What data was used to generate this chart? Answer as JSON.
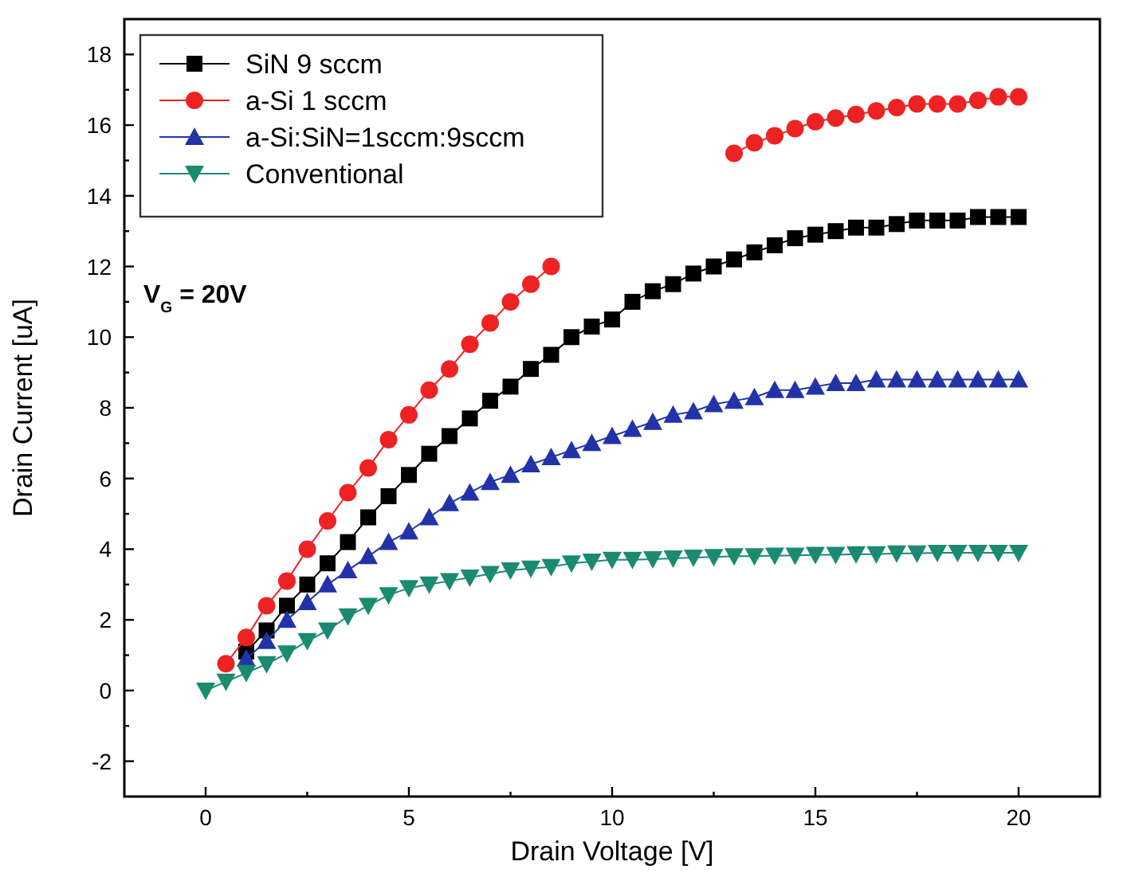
{
  "chart_data": {
    "type": "line",
    "xlabel": "Drain Voltage [V]",
    "ylabel": "Drain Current [uA]",
    "annotations": [
      "V$_{G}$ = 20V"
    ],
    "x": [
      0,
      0.5,
      1,
      1.5,
      2,
      2.5,
      3,
      3.5,
      4,
      4.5,
      5,
      5.5,
      6,
      6.5,
      7,
      7.5,
      8,
      8.5,
      9,
      9.5,
      10,
      10.5,
      11,
      11.5,
      12,
      12.5,
      13,
      13.5,
      14,
      14.5,
      15,
      15.5,
      16,
      16.5,
      17,
      17.5,
      18,
      18.5,
      19,
      19.5,
      20
    ],
    "xlim": [
      -2,
      22
    ],
    "ylim": [
      -3,
      19
    ],
    "xticks": [
      0,
      {
        "value": 2.5,
        "label": null
      },
      5,
      {
        "value": 7.5,
        "label": null
      },
      10,
      {
        "value": 12.5,
        "label": null
      },
      15,
      {
        "value": 17.5,
        "label": null
      },
      20
    ],
    "yticks": [
      -2,
      {
        "value": -1,
        "label": null
      },
      0,
      {
        "value": 1,
        "label": null
      },
      2,
      {
        "value": 3,
        "label": null
      },
      4,
      {
        "value": 5,
        "label": null
      },
      6,
      {
        "value": 7,
        "label": null
      },
      8,
      {
        "value": 9,
        "label": null
      },
      10,
      {
        "value": 11,
        "label": null
      },
      12,
      {
        "value": 13,
        "label": null
      },
      14,
      {
        "value": 15,
        "label": null
      },
      16,
      {
        "value": 17,
        "label": null
      },
      18
    ],
    "grid": false,
    "legend": "top left",
    "line_style": "solid",
    "series": [
      {
        "name": "SiN 9 sccm",
        "color": "#000000",
        "marker": "square",
        "values": [
          null,
          null,
          1.1,
          1.7,
          2.4,
          3.0,
          3.6,
          4.2,
          4.9,
          5.5,
          6.1,
          6.7,
          7.2,
          7.7,
          8.2,
          8.6,
          9.1,
          9.5,
          10.0,
          10.3,
          10.5,
          11.0,
          11.3,
          11.5,
          11.8,
          12.0,
          12.2,
          12.4,
          12.6,
          12.8,
          12.9,
          13.0,
          13.1,
          13.1,
          13.2,
          13.3,
          13.3,
          13.3,
          13.4,
          13.4,
          13.4
        ]
      },
      {
        "name": "a-Si 1 sccm",
        "color": "#ee2222",
        "marker": "circle",
        "values": [
          null,
          0.76,
          1.5,
          2.4,
          3.1,
          4.0,
          4.8,
          5.6,
          6.3,
          7.1,
          7.8,
          8.5,
          9.1,
          9.8,
          10.4,
          11.0,
          11.5,
          12.0,
          null,
          null,
          null,
          null,
          null,
          null,
          null,
          null,
          15.2,
          15.5,
          15.7,
          15.9,
          16.1,
          16.2,
          16.3,
          16.4,
          16.5,
          16.6,
          16.6,
          16.6,
          16.7,
          16.8,
          16.8
        ]
      },
      {
        "name": "a-Si:SiN=1sccm:9sccm",
        "color": "#2233a8",
        "marker": "triangle",
        "values": [
          null,
          null,
          0.9,
          1.4,
          2.0,
          2.5,
          3.0,
          3.4,
          3.8,
          4.2,
          4.5,
          4.9,
          5.3,
          5.6,
          5.9,
          6.1,
          6.4,
          6.6,
          6.8,
          7.0,
          7.2,
          7.4,
          7.6,
          7.8,
          7.9,
          8.1,
          8.2,
          8.3,
          8.5,
          8.5,
          8.6,
          8.7,
          8.7,
          8.8,
          8.8,
          8.8,
          8.8,
          8.8,
          8.8,
          8.8,
          8.8
        ]
      },
      {
        "name": "Conventional",
        "color": "#1a8a70",
        "marker": "triangle-down",
        "values": [
          0,
          0.25,
          0.5,
          0.75,
          1.05,
          1.4,
          1.7,
          2.1,
          2.4,
          2.7,
          2.9,
          3.0,
          3.1,
          3.2,
          3.3,
          3.4,
          3.45,
          3.5,
          3.6,
          3.65,
          3.7,
          3.7,
          3.72,
          3.74,
          3.76,
          3.78,
          3.8,
          3.8,
          3.82,
          3.82,
          3.84,
          3.84,
          3.86,
          3.86,
          3.88,
          3.88,
          3.9,
          3.9,
          3.9,
          3.9,
          3.9
        ]
      }
    ]
  }
}
